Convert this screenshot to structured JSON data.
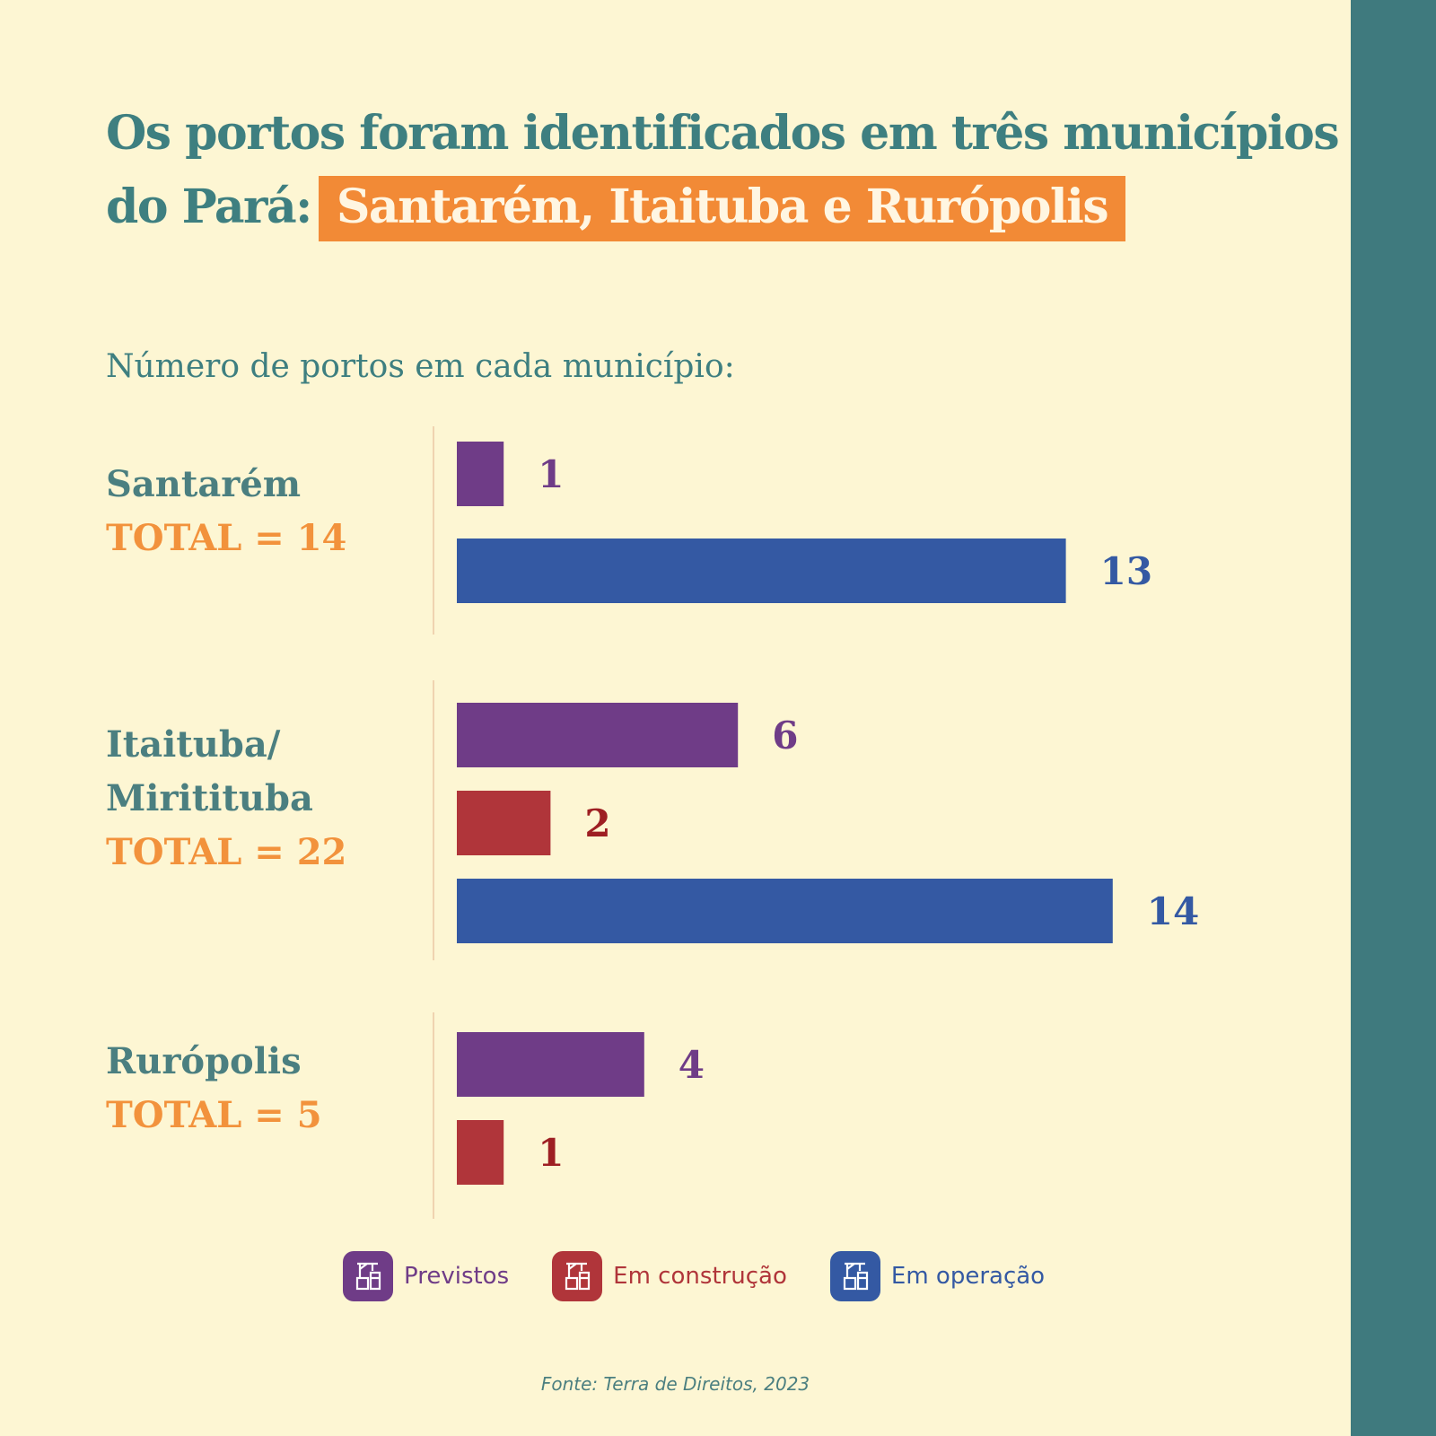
{
  "title": {
    "line1": "Os portos foram identificados em três municípios",
    "line2_prefix": "do Pará:",
    "highlight": "Santarém, Itaituba e Rurópolis"
  },
  "subtitle": "Número de portos em cada município:",
  "source": "Fonte: Terra de Direitos, 2023",
  "colors": {
    "previstos": "#6f3c87",
    "em_construcao": "#b0353a",
    "em_operacao": "#3459a3",
    "label_construcao": "#9e1f23",
    "accent": "#f28a36",
    "teal": "#3f7a7e"
  },
  "legend": [
    {
      "label": "Previstos",
      "color": "#6f3c87",
      "icon": "port-crane-icon"
    },
    {
      "label": "Em construção",
      "color": "#b0353a",
      "icon": "port-crane-icon"
    },
    {
      "label": "Em operação",
      "color": "#3459a3",
      "icon": "port-crane-icon"
    }
  ],
  "chart_data": {
    "type": "bar",
    "orientation": "horizontal",
    "title": "Número de portos em cada município:",
    "xlim": [
      0,
      14
    ],
    "grid": false,
    "legend_position": "bottom",
    "groups": [
      {
        "name": "Santarém",
        "total_label": "TOTAL = 14",
        "bars": [
          {
            "series": "Previstos",
            "value": 1
          },
          {
            "series": "Em operação",
            "value": 13
          }
        ]
      },
      {
        "name_lines": [
          "Itaituba/",
          "Miritituba"
        ],
        "total_label": "TOTAL = 22",
        "bars": [
          {
            "series": "Previstos",
            "value": 6
          },
          {
            "series": "Em construção",
            "value": 2
          },
          {
            "series": "Em operação",
            "value": 14
          }
        ]
      },
      {
        "name": "Rurópolis",
        "total_label": "TOTAL = 5",
        "bars": [
          {
            "series": "Previstos",
            "value": 4
          },
          {
            "series": "Em construção",
            "value": 1
          }
        ]
      }
    ]
  }
}
